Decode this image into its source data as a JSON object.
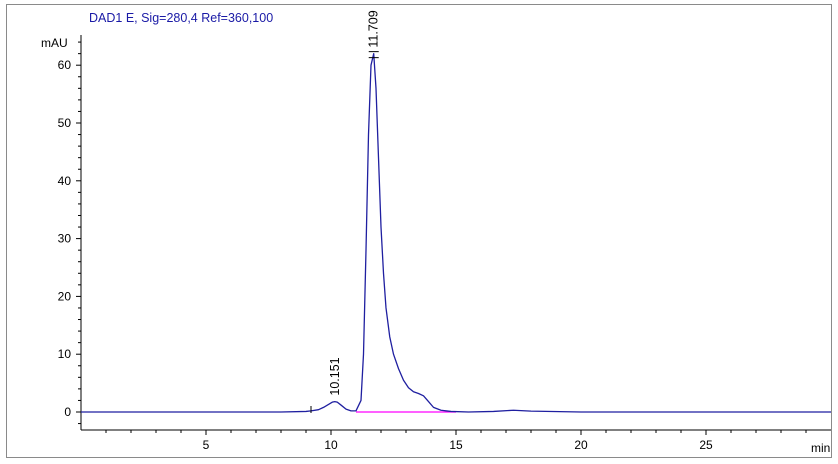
{
  "chart_data": {
    "type": "line",
    "title": "DAD1 E, Sig=280,4 Ref=360,100",
    "ylabel": "mAU",
    "xlabel": "min",
    "xlim": [
      0,
      30
    ],
    "ylim": [
      -3,
      66
    ],
    "x_ticks": [
      5,
      10,
      15,
      20,
      25
    ],
    "y_ticks": [
      0,
      10,
      20,
      30,
      40,
      50,
      60
    ],
    "grid": false,
    "colors": {
      "signal": "#1f1fa0",
      "baseline": "#ff00ff",
      "axes": "#000000",
      "title": "#1a1aa6"
    },
    "series": [
      {
        "x": [
          0,
          2,
          4,
          6,
          8,
          9.0,
          9.2,
          9.5,
          9.7,
          9.9,
          10.05,
          10.151,
          10.25,
          10.4,
          10.6,
          10.8,
          11.0,
          11.2,
          11.3,
          11.4,
          11.5,
          11.6,
          11.709,
          11.8,
          11.9,
          12.0,
          12.1,
          12.2,
          12.35,
          12.5,
          12.7,
          12.9,
          13.1,
          13.3,
          13.5,
          13.7,
          13.9,
          14.1,
          14.4,
          14.8,
          15.5,
          16.5,
          17.3,
          18,
          20,
          22,
          24,
          26,
          28,
          30
        ],
        "y": [
          0,
          0,
          0,
          0,
          0,
          0.1,
          0.2,
          0.4,
          0.8,
          1.3,
          1.7,
          1.8,
          1.7,
          1.2,
          0.5,
          0.2,
          0.2,
          2.0,
          10,
          28,
          48,
          60,
          62,
          56,
          44,
          32,
          24,
          18,
          13,
          10,
          7.5,
          5.5,
          4.2,
          3.5,
          3.2,
          2.8,
          1.8,
          0.8,
          0.3,
          0.1,
          0,
          0.1,
          0.3,
          0.15,
          0,
          0,
          0,
          0,
          0,
          0
        ]
      }
    ],
    "baseline": {
      "x": [
        11.0,
        15.0
      ],
      "y": [
        0,
        0
      ]
    },
    "peaks": [
      {
        "rt": 10.151,
        "label": "10.151",
        "y": 1.8
      },
      {
        "rt": 11.709,
        "label": "11.709",
        "y": 62
      }
    ]
  }
}
